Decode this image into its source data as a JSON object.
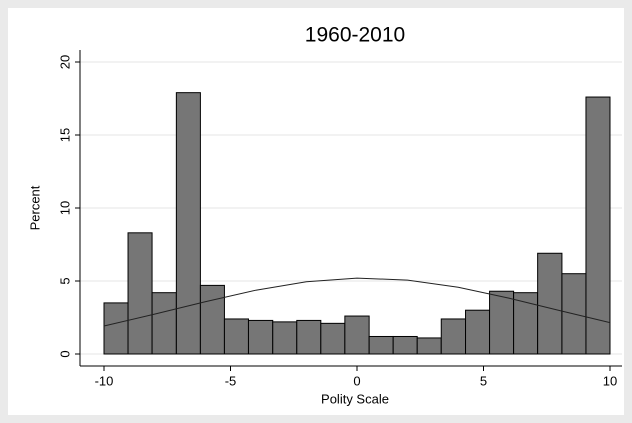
{
  "chart_data": {
    "type": "histogram",
    "title": "1960-2010",
    "x_label": "Polity Scale",
    "y_label": "Percent",
    "bins": [
      -10,
      -9.05,
      -8.1,
      -7.14,
      -6.19,
      -5.24,
      -4.29,
      -3.33,
      -2.38,
      -1.43,
      -0.48,
      0.48,
      1.43,
      2.38,
      3.33,
      4.29,
      5.24,
      6.19,
      7.14,
      8.1,
      9.05,
      10
    ],
    "values": [
      3.5,
      8.3,
      4.2,
      17.9,
      4.7,
      2.4,
      2.3,
      2.2,
      2.3,
      2.1,
      2.6,
      1.2,
      1.2,
      1.1,
      2.4,
      3.0,
      4.3,
      4.2,
      6.9,
      5.5,
      17.6
    ],
    "color": "#767676",
    "density": {
      "x": [
        -10,
        -8,
        -6,
        -4,
        -2,
        0,
        2,
        4,
        6,
        8,
        10
      ],
      "y": [
        1.92,
        2.73,
        3.58,
        4.37,
        4.95,
        5.2,
        5.06,
        4.57,
        3.83,
        2.98,
        2.15
      ]
    },
    "xlim": [
      -10,
      10
    ],
    "xticks": [
      -10,
      -5,
      0,
      5,
      10
    ],
    "ylim": [
      0,
      20
    ],
    "yticks": [
      0,
      5,
      10,
      15,
      20
    ],
    "grid": true
  }
}
